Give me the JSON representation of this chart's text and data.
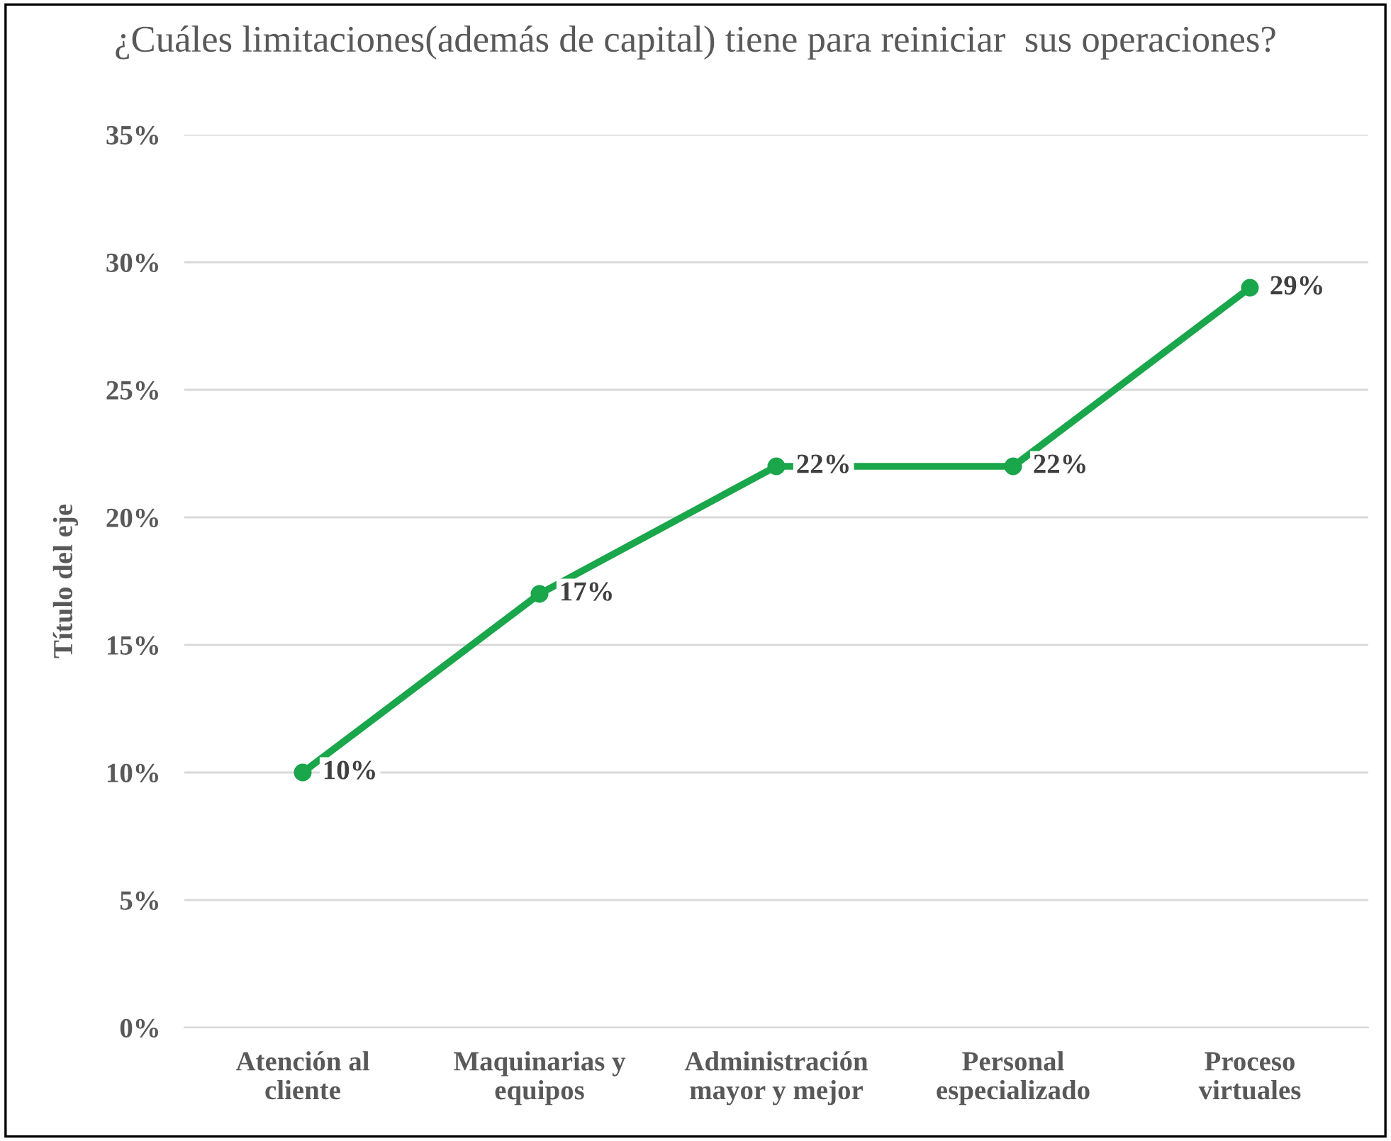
{
  "chart_data": {
    "type": "line",
    "title": "¿Cuáles limitaciones(además de capital) tiene para reiniciar  sus operaciones?",
    "ylabel": "Título del eje",
    "categories": [
      "Atención al\ncliente",
      "Maquinarias y\nequipos",
      "Administración\nmayor y mejor",
      "Personal\nespecializado",
      "Proceso\nvirtuales"
    ],
    "series": [
      {
        "color": "#1aa64a",
        "values": [
          10,
          17,
          22,
          22,
          29
        ],
        "value_labels": [
          "10%",
          "17%",
          "22%",
          "22%",
          "29%"
        ]
      }
    ],
    "ylim": [
      0,
      35
    ],
    "yticks": [
      {
        "value": 0,
        "label": "0%"
      },
      {
        "value": 5,
        "label": "5%"
      },
      {
        "value": 10,
        "label": "10%"
      },
      {
        "value": 15,
        "label": "15%"
      },
      {
        "value": 20,
        "label": "20%"
      },
      {
        "value": 25,
        "label": "25%"
      },
      {
        "value": 30,
        "label": "30%"
      },
      {
        "value": 35,
        "label": "35%"
      }
    ],
    "grid": "y",
    "marker": "circle",
    "line_style": "solid",
    "legend": false
  }
}
